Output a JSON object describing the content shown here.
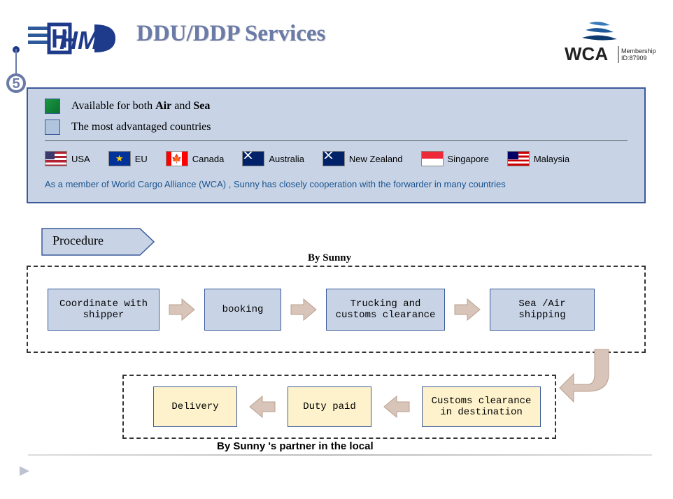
{
  "title": "DDU/DDP Services",
  "bullet_number": "5",
  "wca": {
    "label": "WCA",
    "sub": "Membership\nID:87909"
  },
  "info_panel": {
    "legend1_prefix": "Available for both ",
    "legend1_b1": "Air",
    "legend1_mid": " and ",
    "legend1_b2": "Sea",
    "legend2": "The most advantaged countries",
    "note": "As a member of World Cargo Alliance (WCA) , Sunny has closely cooperation with the forwarder in many countries",
    "legend_colors": {
      "green": "#1a9640",
      "blue": "#b0c4de"
    }
  },
  "countries": [
    {
      "name": "USA",
      "flag": "usa"
    },
    {
      "name": "EU",
      "flag": "eu"
    },
    {
      "name": "Canada",
      "flag": "ca"
    },
    {
      "name": "Australia",
      "flag": "au"
    },
    {
      "name": "New Zealand",
      "flag": "nz"
    },
    {
      "name": "Singapore",
      "flag": "sg"
    },
    {
      "name": "Malaysia",
      "flag": "my"
    }
  ],
  "procedure": {
    "label": "Procedure",
    "by_label_top": "By Sunny",
    "by_label_bottom": "By Sunny 's partner in the local",
    "top_steps": [
      {
        "label": "Coordinate with shipper",
        "width": 160
      },
      {
        "label": "booking",
        "width": 110
      },
      {
        "label": "Trucking and customs clearance",
        "width": 170
      },
      {
        "label": "Sea /Air shipping",
        "width": 150
      }
    ],
    "bottom_steps": [
      {
        "label": "Customs clearance in destination",
        "width": 170
      },
      {
        "label": "Duty paid",
        "width": 120
      },
      {
        "label": "Delivery",
        "width": 120
      }
    ],
    "colors": {
      "top_box_bg": "#c8d4e6",
      "bottom_box_bg": "#fdf2cc",
      "box_border": "#3a5a9a",
      "arrow_fill": "#d8c4b8",
      "tag_fill": "#c8d4e6",
      "tag_border": "#3a5a9a"
    }
  }
}
